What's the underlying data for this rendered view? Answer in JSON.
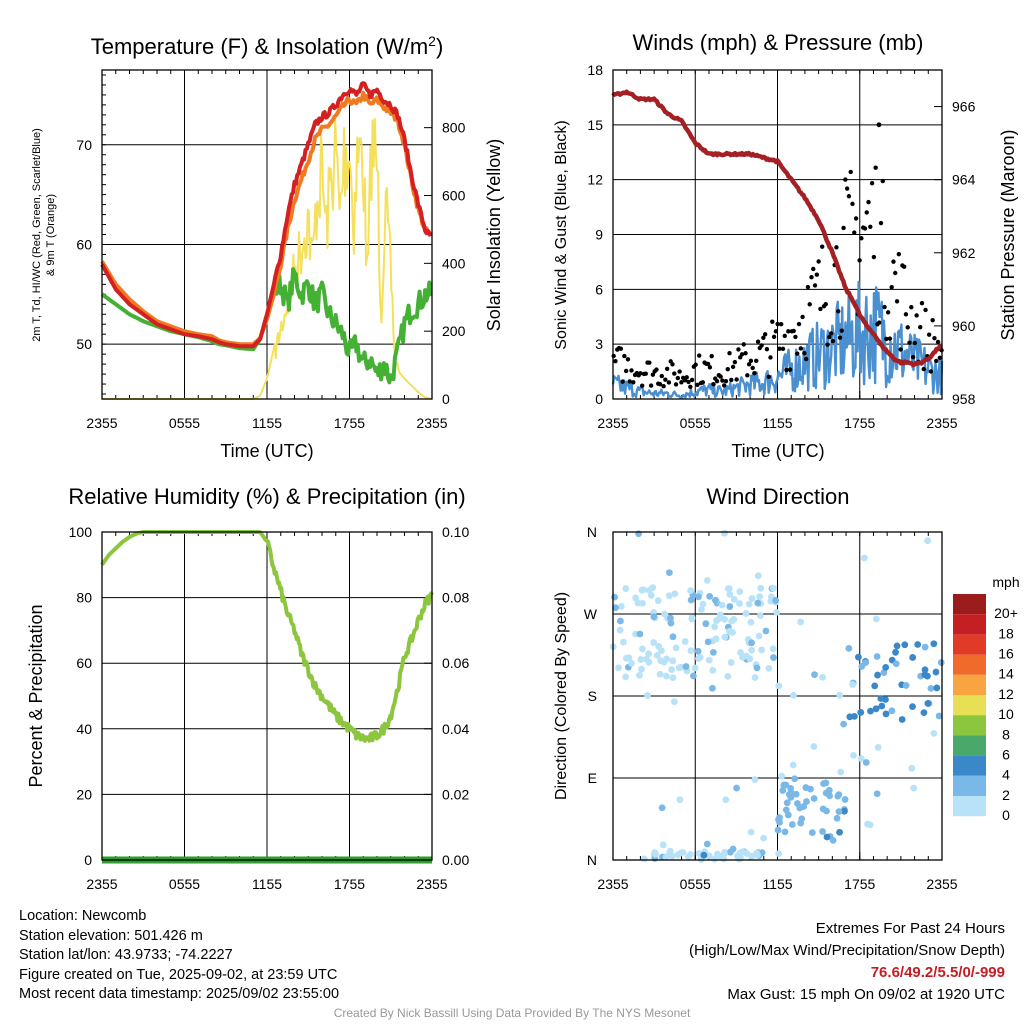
{
  "chart_data": [
    {
      "id": "temp",
      "type": "line",
      "title": "Temperature (F) & Insolation (W/m²)",
      "title_main": "Temperature (F) & Insolation (W/m",
      "title_sup": "2",
      "title_end": ")",
      "xlabel": "Time (UTC)",
      "ylabel_line1": "2m T, Td, HI/WC (Red, Green, Scarlet/Blue)",
      "ylabel_line2": "& 9m T (Orange)",
      "y2label": "Solar Insolation (Yellow)",
      "x_ticks": [
        "2355",
        "0555",
        "1155",
        "1755",
        "2355"
      ],
      "x_hours_range": [
        0,
        24
      ],
      "ylim": [
        44.5,
        77.5
      ],
      "y_ticks": [
        50,
        60,
        70
      ],
      "y2lim": [
        0,
        970
      ],
      "y2_ticks": [
        0,
        200,
        400,
        600,
        800
      ],
      "series": [
        {
          "name": "2m T",
          "color": "#d42020",
          "x": [
            0,
            1,
            2,
            3,
            4,
            5,
            6,
            7,
            8,
            8.5,
            9,
            10,
            11,
            11.5,
            12,
            12.5,
            13,
            13.5,
            14,
            14.5,
            15,
            15.5,
            16,
            16.5,
            17,
            17.5,
            18,
            18.5,
            19,
            19.5,
            20,
            20.5,
            21,
            21.5,
            22,
            22.5,
            23,
            23.5,
            24
          ],
          "values": [
            58,
            55.5,
            54,
            53,
            52,
            51.5,
            51,
            50.8,
            50.5,
            50.2,
            50,
            49.8,
            49.8,
            50.5,
            53,
            56,
            59,
            63,
            66,
            68,
            70,
            72,
            72.8,
            73.2,
            74,
            75,
            75.6,
            75,
            76,
            75,
            75.5,
            74.5,
            74,
            73,
            70.5,
            67,
            64,
            61.5,
            60.5
          ]
        },
        {
          "name": "9m T",
          "color": "#f07a20",
          "x": [
            0,
            1,
            2,
            3,
            4,
            5,
            6,
            7,
            8,
            8.5,
            9,
            10,
            11,
            11.5,
            12,
            12.5,
            13,
            13.5,
            14,
            14.5,
            15,
            15.5,
            16,
            16.5,
            17,
            17.5,
            18,
            18.5,
            19,
            19.5,
            20,
            20.5,
            21,
            21.5,
            22,
            22.5,
            23,
            23.5,
            24
          ],
          "values": [
            58.3,
            56,
            54.5,
            53.3,
            52.3,
            51.8,
            51.3,
            51,
            50.8,
            50.4,
            50.2,
            50,
            50,
            50.6,
            52.5,
            55,
            58,
            61.5,
            64.5,
            66.5,
            68.5,
            70.5,
            71.5,
            72,
            72.8,
            73.8,
            74.5,
            74,
            75,
            74,
            74.5,
            73.8,
            73.2,
            72.5,
            70,
            66.5,
            63.5,
            61.5,
            60.6
          ]
        },
        {
          "name": "Td",
          "color": "#44b034",
          "x": [
            0,
            1,
            2,
            3,
            4,
            5,
            6,
            7,
            8,
            8.5,
            9,
            10,
            11,
            11.5,
            12,
            12.5,
            13,
            13.5,
            14,
            14.5,
            15,
            15.5,
            16,
            16.5,
            17,
            17.5,
            18,
            18.5,
            19,
            19.5,
            20,
            20.5,
            21,
            21.5,
            22,
            22.5,
            23,
            23.5,
            24
          ],
          "values": [
            55,
            54,
            53,
            52.3,
            51.8,
            51.3,
            51,
            50.7,
            50.3,
            50,
            49.9,
            49.6,
            49.5,
            50.5,
            53,
            55.5,
            56,
            54,
            57,
            55,
            56,
            54,
            55,
            53,
            52,
            51,
            49,
            50,
            48,
            48.5,
            47,
            48,
            46.5,
            49,
            52,
            53.5,
            54,
            55,
            55
          ]
        },
        {
          "name": "Insolation",
          "axis": "y2",
          "color": "#f5e05c",
          "x": [
            0,
            3,
            6,
            8,
            9,
            10,
            10.5,
            11,
            11.5,
            12,
            12.5,
            13,
            13.5,
            14,
            14.5,
            15,
            15.3,
            15.6,
            16,
            16.3,
            16.6,
            17,
            17.3,
            17.6,
            18,
            18.3,
            18.6,
            19,
            19.3,
            19.6,
            20,
            20.3,
            20.6,
            21,
            21.3,
            21.6,
            22,
            22.5,
            23,
            23.5,
            24
          ],
          "values": [
            0,
            0,
            0,
            0,
            0,
            0,
            0,
            0,
            10,
            60,
            150,
            250,
            350,
            450,
            550,
            650,
            480,
            700,
            820,
            600,
            760,
            890,
            640,
            870,
            900,
            620,
            880,
            860,
            400,
            900,
            850,
            300,
            700,
            450,
            150,
            80,
            60,
            40,
            20,
            5,
            0
          ]
        }
      ]
    },
    {
      "id": "wind",
      "type": "scatter",
      "title": "Winds (mph) & Pressure (mb)",
      "xlabel": "Time (UTC)",
      "ylabel": "Sonic Wind & Gust (Blue, Black)",
      "y2label": "Station Pressure (Maroon)",
      "x_ticks": [
        "2355",
        "0555",
        "1155",
        "1755",
        "2355"
      ],
      "x_hours_range": [
        0,
        24
      ],
      "ylim": [
        0,
        18
      ],
      "y_ticks": [
        0,
        3,
        6,
        9,
        12,
        15,
        18
      ],
      "y2lim": [
        958,
        967
      ],
      "y2_ticks": [
        958,
        960,
        962,
        964,
        966
      ],
      "series": [
        {
          "name": "Pressure",
          "axis": "y2",
          "color": "#a42024",
          "x": [
            0,
            1,
            2,
            3,
            4,
            5,
            6,
            7,
            8,
            9,
            10,
            11,
            12,
            13,
            14,
            15,
            16,
            16.5,
            17,
            17.5,
            18,
            18.5,
            19,
            19.5,
            20,
            20.5,
            21,
            21.5,
            22,
            22.5,
            23,
            23.5,
            24
          ],
          "values": [
            966.3,
            966.4,
            966.2,
            966.2,
            965.8,
            965.6,
            965.0,
            964.7,
            964.7,
            964.7,
            964.7,
            964.6,
            964.5,
            964.0,
            963.5,
            962.9,
            962.0,
            961.5,
            961.0,
            960.7,
            960.3,
            960.0,
            959.8,
            959.5,
            959.3,
            959.1,
            959.0,
            959.0,
            958.95,
            959.0,
            959.1,
            959.3,
            959.5
          ]
        },
        {
          "name": "Wind",
          "color": "#4a90d0",
          "x": [
            0,
            1,
            2,
            3,
            4,
            5,
            6,
            7,
            8,
            9,
            10,
            11,
            12,
            13,
            14,
            15,
            16,
            17,
            18,
            19,
            20,
            21,
            22,
            23,
            24
          ],
          "values": [
            0.8,
            0.6,
            0.4,
            0.3,
            0.3,
            0.2,
            0.4,
            0.5,
            0.4,
            0.6,
            0.8,
            0.9,
            1.2,
            1.6,
            2.0,
            2.4,
            2.8,
            3.2,
            3.6,
            3.8,
            3.2,
            2.6,
            2.0,
            1.6,
            1.2
          ]
        },
        {
          "name": "Gust",
          "color": "#000000",
          "x": [
            0,
            1,
            2,
            3,
            4,
            5,
            6,
            7,
            8,
            9,
            10,
            11,
            12,
            13,
            14,
            15,
            16,
            17,
            18,
            19,
            20,
            21,
            22,
            23,
            24
          ],
          "values": [
            2,
            1.8,
            1.6,
            1.4,
            1.4,
            1.2,
            1.6,
            1.6,
            1.5,
            1.8,
            2.2,
            2.5,
            3,
            3.6,
            4.5,
            5.5,
            6.5,
            8,
            9,
            9.5,
            7,
            5.5,
            4,
            3.2,
            2.6
          ]
        }
      ],
      "max_gust": {
        "x": 19.4,
        "value": 15
      }
    },
    {
      "id": "rh",
      "type": "line",
      "title": "Relative Humidity (%) & Precipitation (in)",
      "ylabel": "Percent & Precipitation",
      "x_ticks": [
        "2355",
        "0555",
        "1155",
        "1755",
        "2355"
      ],
      "x_hours_range": [
        0,
        24
      ],
      "ylim": [
        0,
        100
      ],
      "y_ticks": [
        0,
        20,
        40,
        60,
        80,
        100
      ],
      "y2lim": [
        0,
        0.1
      ],
      "y2_ticks": [
        "0.00",
        "0.02",
        "0.04",
        "0.06",
        "0.08",
        "0.10"
      ],
      "series": [
        {
          "name": "RH",
          "color": "#8cc63e",
          "x": [
            0,
            0.5,
            1,
            1.5,
            2,
            2.5,
            3,
            4,
            5,
            6,
            7,
            8,
            9,
            10,
            11,
            11.5,
            12,
            12.5,
            13,
            13.5,
            14,
            14.5,
            15,
            15.5,
            16,
            16.5,
            17,
            17.5,
            18,
            18.5,
            19,
            19.5,
            20,
            20.5,
            21,
            21.5,
            22,
            22.5,
            23,
            23.5,
            24
          ],
          "values": [
            90,
            93,
            95,
            97,
            98.5,
            99.5,
            100,
            100,
            100,
            100,
            100,
            100,
            100,
            100,
            100,
            100,
            97,
            89,
            82,
            75,
            70,
            63,
            58,
            53,
            50,
            47,
            44,
            42,
            40,
            38,
            37,
            37,
            38,
            40,
            44,
            52,
            62,
            67,
            73,
            78,
            81
          ]
        },
        {
          "name": "Precipitation",
          "axis": "y2",
          "color": "#2d9e2d",
          "x": [
            0,
            24
          ],
          "values": [
            0,
            0
          ]
        }
      ]
    },
    {
      "id": "wdir",
      "type": "scatter",
      "title": "Wind Direction",
      "ylabel": "Direction (Colored By Speed)",
      "x_ticks": [
        "2355",
        "0555",
        "1155",
        "1755",
        "2355"
      ],
      "x_hours_range": [
        0,
        24
      ],
      "y_ticks": [
        "N",
        "E",
        "S",
        "W",
        "N"
      ],
      "ylim": [
        0,
        360
      ],
      "legend": {
        "title": "mph",
        "labels": [
          "20+",
          "18",
          "16",
          "14",
          "12",
          "10",
          "8",
          "6",
          "4",
          "2",
          "0"
        ],
        "colors": [
          "#9c1c1c",
          "#c42024",
          "#e03a28",
          "#f06a2c",
          "#f8a440",
          "#e8e054",
          "#8cc63e",
          "#4aa86a",
          "#3a88c8",
          "#7ab8e8",
          "#b8e2f8"
        ]
      },
      "clusters": [
        {
          "x0": 0,
          "x1": 12,
          "d0": 200,
          "d1": 300,
          "speed_color": "#b8e2f8"
        },
        {
          "x0": 3,
          "x1": 11,
          "d0": 0,
          "d1": 10,
          "speed_color": "#b8e2f8"
        },
        {
          "x0": 12,
          "x1": 17,
          "d0": 20,
          "d1": 90,
          "speed_color": "#7ab8e8"
        },
        {
          "x0": 17,
          "x1": 24,
          "d0": 150,
          "d1": 240,
          "speed_color": "#3a88c8"
        }
      ]
    }
  ],
  "info": {
    "location": "Location: Newcomb",
    "elevation": "Station elevation: 501.426 m",
    "latlon": "Station lat/lon: 43.9733; -74.2227",
    "created": "Figure created on Tue, 2025-09-02, at 23:59 UTC",
    "recent": "Most recent data timestamp: 2025/09/02 23:55:00"
  },
  "extremes": {
    "title": "Extremes For Past 24 Hours",
    "subtitle": "(High/Low/Max Wind/Precipitation/Snow Depth)",
    "values": "76.6/49.2/5.5/0/-999",
    "max_gust": "Max Gust: 15 mph On 09/02 at 1920 UTC"
  },
  "credit": "Created By Nick Bassill Using Data Provided By The NYS Mesonet"
}
